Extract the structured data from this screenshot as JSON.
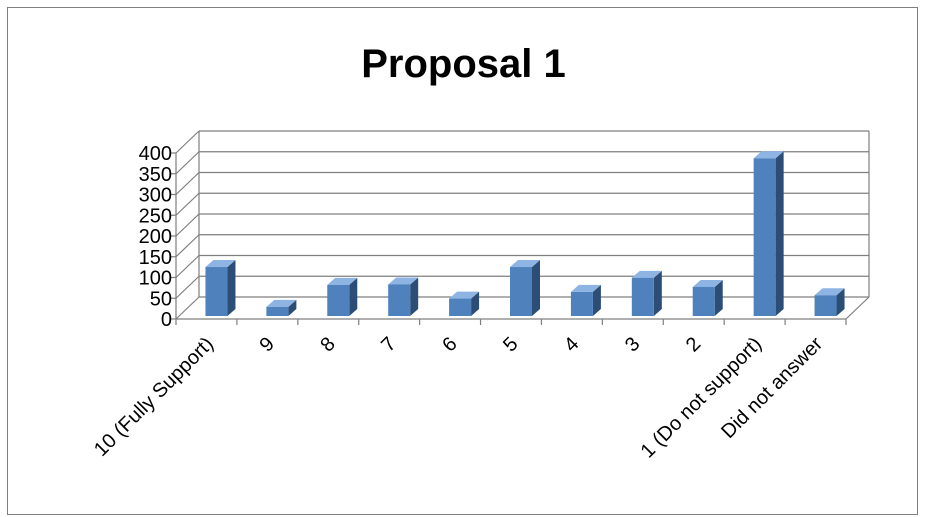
{
  "chart_data": {
    "type": "bar",
    "title": "Proposal 1",
    "categories": [
      "10 (Fully Support)",
      "9",
      "8",
      "7",
      "6",
      "5",
      "4",
      "3",
      "2",
      "1  (Do not support)",
      "Did not answer"
    ],
    "values": [
      118,
      22,
      75,
      76,
      42,
      118,
      58,
      92,
      70,
      380,
      50
    ],
    "ylim": [
      0,
      400
    ],
    "yticks": [
      0,
      50,
      100,
      150,
      200,
      250,
      300,
      350,
      400
    ],
    "xlabel": "",
    "ylabel": "",
    "grid": true,
    "legend": "none",
    "style": "3d-column",
    "colors": {
      "bar_front": "#4f81bd",
      "bar_side": "#2c4d75",
      "bar_top": "#8eb4e3",
      "grid": "#7f7f7f",
      "axis": "#7f7f7f"
    }
  }
}
